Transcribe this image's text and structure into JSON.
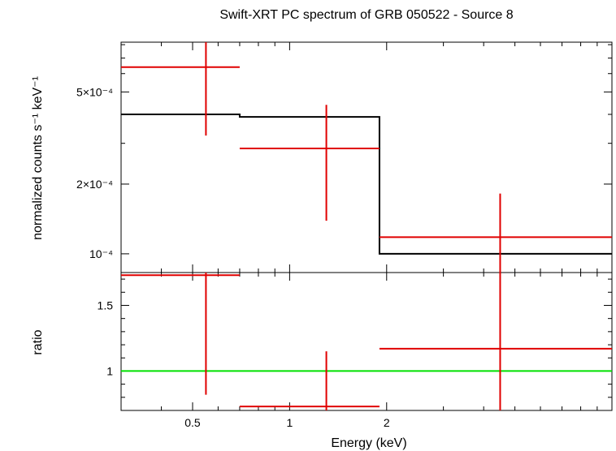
{
  "title": "Swift-XRT PC spectrum of GRB 050522 - Source 8",
  "xlabel": "Energy (keV)",
  "chart_data": [
    {
      "panel": "spectrum",
      "type": "line",
      "ylabel": "normalized counts s⁻¹ keV⁻¹",
      "xscale": "log",
      "yscale": "log",
      "xlim": [
        0.3,
        10
      ],
      "ylim": [
        8.3e-05,
        0.00082
      ],
      "yticks": [
        {
          "value": 0.0005,
          "label": "5×10⁻⁴"
        },
        {
          "value": 0.0002,
          "label": "2×10⁻⁴"
        },
        {
          "value": 0.0001,
          "label": "10⁻⁴"
        }
      ],
      "series": [
        {
          "role": "model",
          "color": "#000000",
          "steps": [
            {
              "x0": 0.3,
              "x1": 0.7,
              "y": 0.0004
            },
            {
              "x0": 0.7,
              "x1": 1.9,
              "y": 0.00039
            },
            {
              "x0": 1.9,
              "x1": 10,
              "y": 0.0001
            }
          ]
        },
        {
          "role": "data",
          "color": "#e00000",
          "points": [
            {
              "x": 0.55,
              "xlo": 0.3,
              "xhi": 0.7,
              "y": 0.00064,
              "ylo": 0.000324,
              "yhi": 0.00082
            },
            {
              "x": 1.3,
              "xlo": 0.7,
              "xhi": 1.9,
              "y": 0.000285,
              "ylo": 0.000139,
              "yhi": 0.00044
            },
            {
              "x": 4.5,
              "xlo": 1.9,
              "xhi": 10,
              "y": 0.000118,
              "ylo": 8.3e-05,
              "yhi": 0.000182
            }
          ]
        }
      ]
    },
    {
      "panel": "ratio",
      "type": "scatter",
      "ylabel": "ratio",
      "xscale": "log",
      "xlim": [
        0.3,
        10
      ],
      "ylim": [
        0.7,
        1.75
      ],
      "yticks": [
        {
          "value": 1.5,
          "label": "1.5"
        },
        {
          "value": 1,
          "label": "1"
        }
      ],
      "xticks": [
        {
          "value": 0.5,
          "label": "0.5"
        },
        {
          "value": 1,
          "label": "1"
        },
        {
          "value": 2,
          "label": "2"
        }
      ],
      "reference_line": {
        "y": 1,
        "color": "#00e000"
      },
      "series": [
        {
          "role": "data",
          "color": "#e00000",
          "points": [
            {
              "x": 0.55,
              "xlo": 0.3,
              "xhi": 0.7,
              "y": 1.73,
              "ylo": 0.82,
              "yhi": 1.75
            },
            {
              "x": 1.3,
              "xlo": 0.7,
              "xhi": 1.9,
              "y": 0.73,
              "ylo": 0.7,
              "yhi": 1.15
            },
            {
              "x": 4.5,
              "xlo": 1.9,
              "xhi": 10,
              "y": 1.17,
              "ylo": 0.7,
              "yhi": 1.75
            }
          ]
        }
      ]
    }
  ]
}
